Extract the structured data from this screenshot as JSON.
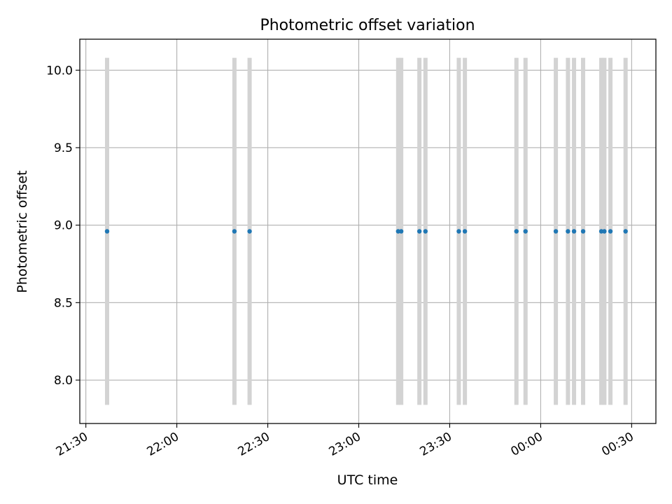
{
  "chart_data": {
    "type": "scatter",
    "title": "Photometric offset variation",
    "xlabel": "UTC time",
    "ylabel": "Photometric offset",
    "xlim": [
      "21:28",
      "00:38"
    ],
    "ylim": [
      7.72,
      10.2
    ],
    "x_ticks": [
      "21:30",
      "22:00",
      "22:30",
      "23:00",
      "23:30",
      "00:00",
      "00:30"
    ],
    "y_ticks": [
      "8.0",
      "8.5",
      "9.0",
      "9.5",
      "10.0"
    ],
    "grid": true,
    "series": [
      {
        "color": "#1f77b4",
        "points": [
          {
            "x": "21:37",
            "y": 8.96,
            "err_low": 7.84,
            "err_high": 10.08
          },
          {
            "x": "22:19",
            "y": 8.96,
            "err_low": 7.84,
            "err_high": 10.08
          },
          {
            "x": "22:24",
            "y": 8.96,
            "err_low": 7.84,
            "err_high": 10.08
          },
          {
            "x": "23:13",
            "y": 8.96,
            "err_low": 7.84,
            "err_high": 10.08
          },
          {
            "x": "23:14",
            "y": 8.96,
            "err_low": 7.84,
            "err_high": 10.08
          },
          {
            "x": "23:20",
            "y": 8.96,
            "err_low": 7.84,
            "err_high": 10.08
          },
          {
            "x": "23:22",
            "y": 8.96,
            "err_low": 7.84,
            "err_high": 10.08
          },
          {
            "x": "23:33",
            "y": 8.96,
            "err_low": 7.84,
            "err_high": 10.08
          },
          {
            "x": "23:35",
            "y": 8.96,
            "err_low": 7.84,
            "err_high": 10.08
          },
          {
            "x": "23:52",
            "y": 8.96,
            "err_low": 7.84,
            "err_high": 10.08
          },
          {
            "x": "23:55",
            "y": 8.96,
            "err_low": 7.84,
            "err_high": 10.08
          },
          {
            "x": "00:05",
            "y": 8.96,
            "err_low": 7.84,
            "err_high": 10.08
          },
          {
            "x": "00:09",
            "y": 8.96,
            "err_low": 7.84,
            "err_high": 10.08
          },
          {
            "x": "00:11",
            "y": 8.96,
            "err_low": 7.84,
            "err_high": 10.08
          },
          {
            "x": "00:14",
            "y": 8.96,
            "err_low": 7.84,
            "err_high": 10.08
          },
          {
            "x": "00:20",
            "y": 8.96,
            "err_low": 7.84,
            "err_high": 10.08
          },
          {
            "x": "00:21",
            "y": 8.96,
            "err_low": 7.84,
            "err_high": 10.08
          },
          {
            "x": "00:23",
            "y": 8.96,
            "err_low": 7.84,
            "err_high": 10.08
          },
          {
            "x": "00:28",
            "y": 8.96,
            "err_low": 7.84,
            "err_high": 10.08
          }
        ]
      }
    ],
    "errorbar_color": "#d3d3d3",
    "grid_color": "#b0b0b0"
  }
}
